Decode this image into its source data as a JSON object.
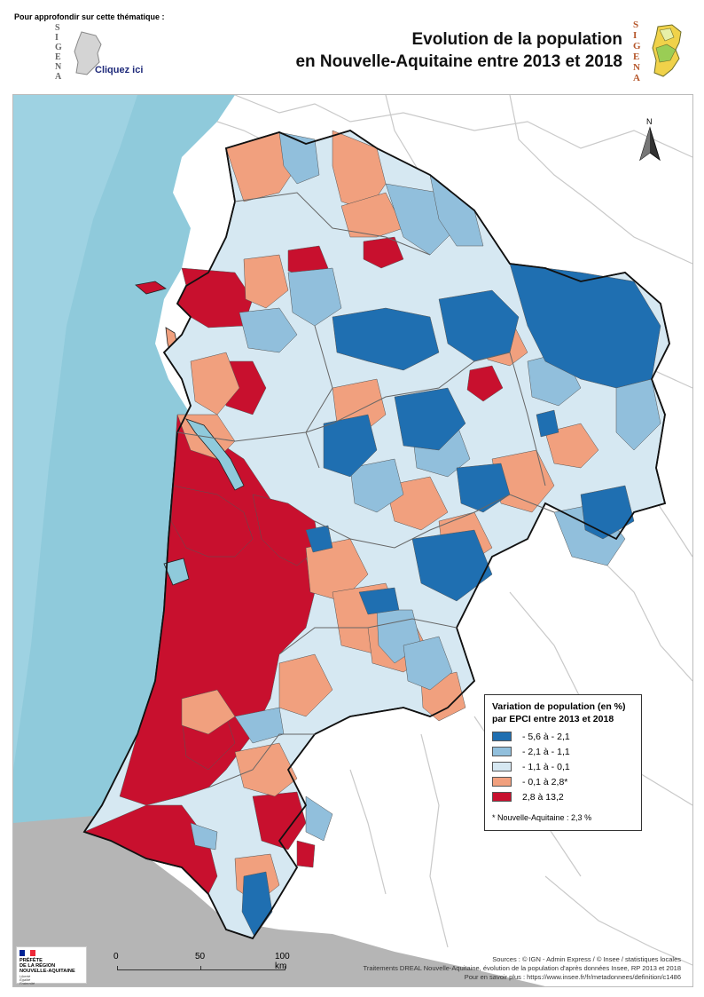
{
  "header": {
    "top_note": "Pour approfondir sur cette thématique :",
    "link_label": "Cliquez ici",
    "title_line1": "Evolution de la population",
    "title_line2": "en Nouvelle-Aquitaine entre 2013 et 2018",
    "logo_letters": [
      "S",
      "I",
      "G",
      "E",
      "N",
      "A"
    ]
  },
  "north_label": "N",
  "legend": {
    "title_line1": "Variation de population (en %)",
    "title_line2": "par EPCI entre 2013 et 2018",
    "classes": [
      {
        "label": "- 5,6 à - 2,1",
        "color": "#1f6fb1"
      },
      {
        "label": "- 2,1 à - 1,1",
        "color": "#91bfdc"
      },
      {
        "label": "- 1,1 à - 0,1",
        "color": "#d6e8f2"
      },
      {
        "label": "- 0,1 à 2,8*",
        "color": "#f1a07e"
      },
      {
        "label": "2,8 à 13,2",
        "color": "#c8102e"
      }
    ],
    "note": "* Nouvelle-Aquitaine : 2,3 %"
  },
  "scale": {
    "labels": [
      "0",
      "50",
      "100 km"
    ]
  },
  "prefecture": {
    "line1": "PRÉFÈTE",
    "line2": "DE LA RÉGION",
    "line3": "NOUVELLE-AQUITAINE",
    "motto": [
      "Liberté",
      "Égalité",
      "Fraternité"
    ]
  },
  "sources": [
    "Sources : © IGN  - Admin Express / © Insee / statistiques locales",
    "Traitements DREAL Nouvelle-Aquitaine, évolution de la population d'après données Insee, RP 2013 et 2018",
    "Pour en savoir plus : https://www.insee.fr/fr/metadonnees/definition/c1486"
  ],
  "colors": {
    "sea": "#8fcadb",
    "outside_land": "#ffffff",
    "mountains": "#b5b5b5",
    "neighbour_border": "#c9c9c9"
  }
}
